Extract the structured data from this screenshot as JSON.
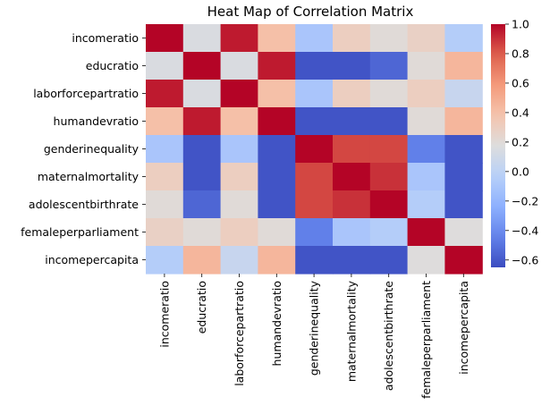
{
  "chart_data": {
    "type": "heatmap",
    "title": "Heat Map of Correlation Matrix",
    "colormap": "coolwarm",
    "xlabel": "",
    "ylabel": "",
    "variables": [
      "incomeratio",
      "educratio",
      "laborforcepartratio",
      "humandevratio",
      "genderinequality",
      "maternalmortality",
      "adolescentbirthrate",
      "femaleperparliament",
      "incomepercapita"
    ],
    "matrix": [
      [
        1.0,
        0.15,
        0.95,
        0.4,
        -0.1,
        0.3,
        0.2,
        0.28,
        -0.05
      ],
      [
        0.15,
        1.0,
        0.15,
        0.95,
        -0.62,
        -0.62,
        -0.55,
        0.2,
        0.45
      ],
      [
        0.95,
        0.15,
        1.0,
        0.4,
        -0.1,
        0.3,
        0.2,
        0.3,
        0.05
      ],
      [
        0.4,
        0.95,
        0.4,
        1.0,
        -0.62,
        -0.62,
        -0.62,
        0.2,
        0.45
      ],
      [
        -0.1,
        -0.62,
        -0.1,
        -0.62,
        1.0,
        0.85,
        0.85,
        -0.45,
        -0.62
      ],
      [
        0.3,
        -0.62,
        0.3,
        -0.62,
        0.85,
        1.0,
        0.9,
        -0.1,
        -0.62
      ],
      [
        0.2,
        -0.55,
        0.2,
        -0.62,
        0.85,
        0.9,
        1.0,
        -0.05,
        -0.62
      ],
      [
        0.28,
        0.2,
        0.3,
        0.2,
        -0.45,
        -0.1,
        -0.05,
        1.0,
        0.18
      ],
      [
        -0.05,
        0.45,
        0.05,
        0.45,
        -0.62,
        -0.62,
        -0.62,
        0.18,
        1.0
      ]
    ],
    "colorbar": {
      "min": -0.65,
      "max": 1.0,
      "ticks": [
        "1.0",
        "0.8",
        "0.6",
        "0.4",
        "0.2",
        "0.0",
        "−0.2",
        "−0.4",
        "−0.6"
      ]
    },
    "grid": false,
    "legend": "colorbar-right"
  }
}
